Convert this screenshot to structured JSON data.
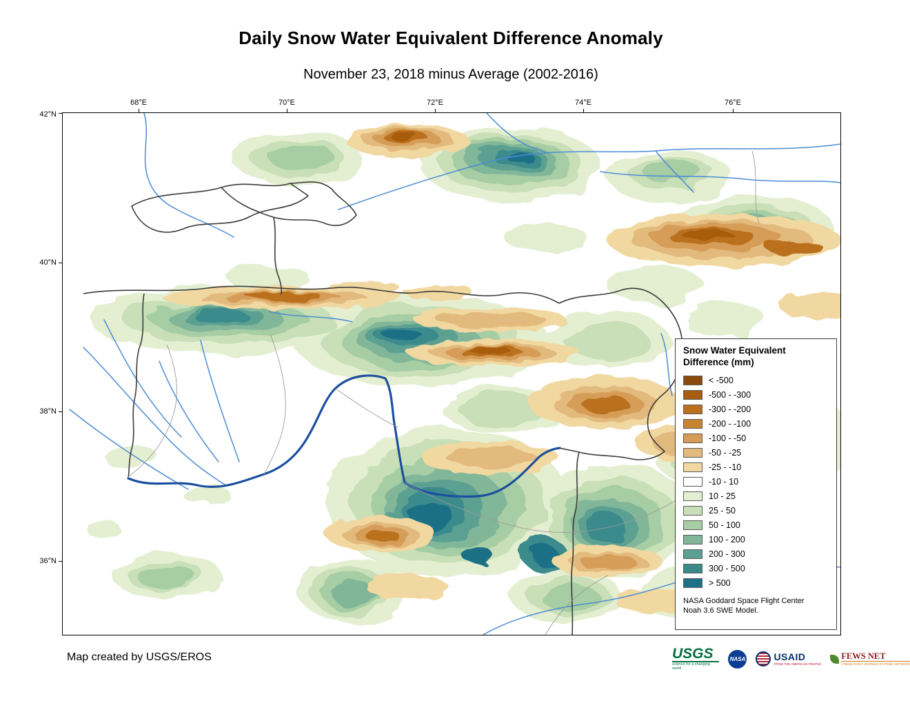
{
  "title": "Daily Snow Water Equivalent Difference Anomaly",
  "subtitle": "November 23, 2018 minus Average (2002-2016)",
  "map": {
    "x_ticks": [
      "68°E",
      "70°E",
      "72°E",
      "74°E",
      "76°E"
    ],
    "y_ticks": [
      "42°N",
      "40°N",
      "38°N",
      "36°N"
    ]
  },
  "legend": {
    "title_line1": "Snow Water Equivalent",
    "title_line2": "Difference (mm)",
    "entries": [
      {
        "label": "< -500",
        "color": "#8a4a0b"
      },
      {
        "label": "-500 - -300",
        "color": "#a85d10"
      },
      {
        "label": "-300 - -200",
        "color": "#ba701d"
      },
      {
        "label": "-200 - -100",
        "color": "#c98433"
      },
      {
        "label": "-100 - -50",
        "color": "#d69d58"
      },
      {
        "label": "-50 - -25",
        "color": "#e3ba7d"
      },
      {
        "label": "-25 - -10",
        "color": "#f1d8a1"
      },
      {
        "label": "-10 - 10",
        "color": "#ffffff"
      },
      {
        "label": "10 - 25",
        "color": "#e4efd2"
      },
      {
        "label": "25 - 50",
        "color": "#c8dfb7"
      },
      {
        "label": "50 - 100",
        "color": "#a6cda3"
      },
      {
        "label": "100 - 200",
        "color": "#81b699"
      },
      {
        "label": "200 - 300",
        "color": "#5ba092"
      },
      {
        "label": "300 - 500",
        "color": "#3a8a8c"
      },
      {
        "label": "> 500",
        "color": "#1d7086"
      }
    ],
    "source_line1": "NASA Goddard Space Flight Center",
    "source_line2": "Noah 3.6 SWE Model."
  },
  "footer": {
    "credit": "Map created by USGS/EROS"
  },
  "logos": {
    "usgs": {
      "name": "USGS",
      "tagline": "science for a changing world"
    },
    "nasa": {
      "name": "NASA"
    },
    "usaid": {
      "name": "USAID",
      "tagline": "FROM THE AMERICAN PEOPLE"
    },
    "fewsnet": {
      "name": "FEWS NET",
      "tagline": "FAMINE EARLY WARNING SYSTEMS NETWORK"
    }
  }
}
